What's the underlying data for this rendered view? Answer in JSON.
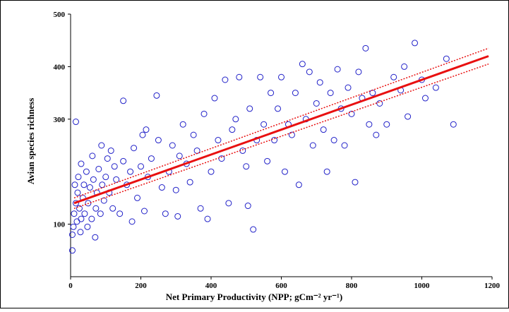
{
  "chart_data": {
    "type": "scatter",
    "x_label": "Net Primary Productivity (NPP; gCm⁻² yr⁻¹)",
    "y_label": "Avian species richness",
    "xlim": [
      0,
      1200
    ],
    "ylim": [
      0,
      500
    ],
    "xticks": [
      0,
      200,
      400,
      600,
      800,
      1000,
      1200
    ],
    "yticks": [
      100,
      300,
      400,
      500
    ],
    "color": "#2020c8",
    "x": [
      5,
      5,
      8,
      10,
      12,
      15,
      15,
      18,
      20,
      22,
      25,
      28,
      30,
      30,
      35,
      38,
      40,
      45,
      48,
      50,
      55,
      60,
      62,
      65,
      70,
      72,
      75,
      80,
      85,
      88,
      90,
      95,
      100,
      105,
      110,
      115,
      120,
      125,
      130,
      140,
      150,
      150,
      160,
      170,
      175,
      180,
      190,
      200,
      205,
      210,
      215,
      220,
      230,
      245,
      250,
      260,
      270,
      280,
      290,
      300,
      305,
      310,
      320,
      330,
      340,
      350,
      360,
      370,
      380,
      390,
      400,
      410,
      420,
      430,
      440,
      450,
      460,
      470,
      480,
      490,
      500,
      505,
      510,
      520,
      530,
      540,
      550,
      560,
      570,
      580,
      590,
      600,
      610,
      620,
      630,
      640,
      650,
      660,
      670,
      680,
      690,
      700,
      710,
      720,
      730,
      740,
      750,
      760,
      770,
      780,
      790,
      800,
      810,
      820,
      830,
      840,
      850,
      860,
      870,
      880,
      900,
      920,
      940,
      950,
      960,
      980,
      1000,
      1010,
      1040,
      1070,
      1090
    ],
    "y": [
      50,
      80,
      95,
      120,
      175,
      295,
      140,
      105,
      160,
      190,
      130,
      85,
      110,
      215,
      150,
      175,
      120,
      200,
      95,
      140,
      170,
      110,
      230,
      185,
      75,
      130,
      160,
      205,
      120,
      250,
      175,
      145,
      190,
      225,
      160,
      240,
      130,
      210,
      185,
      120,
      335,
      220,
      175,
      200,
      105,
      245,
      150,
      210,
      270,
      125,
      280,
      190,
      225,
      345,
      260,
      170,
      120,
      200,
      250,
      165,
      115,
      230,
      290,
      215,
      180,
      270,
      240,
      130,
      310,
      110,
      200,
      340,
      260,
      225,
      375,
      140,
      280,
      300,
      380,
      240,
      210,
      135,
      320,
      90,
      260,
      380,
      290,
      220,
      350,
      260,
      320,
      380,
      200,
      290,
      270,
      350,
      175,
      405,
      300,
      390,
      250,
      330,
      370,
      280,
      200,
      350,
      260,
      395,
      320,
      250,
      360,
      310,
      180,
      390,
      340,
      435,
      290,
      350,
      270,
      330,
      290,
      380,
      355,
      400,
      305,
      445,
      375,
      340,
      360,
      415,
      290
    ],
    "fit": {
      "color": "#e81010",
      "x": [
        10,
        1190
      ],
      "y": [
        140,
        420
      ]
    },
    "ci_upper": {
      "color": "#e81010",
      "x": [
        10,
        1190
      ],
      "y": [
        150,
        435
      ]
    },
    "ci_lower": {
      "color": "#e81010",
      "x": [
        10,
        1190
      ],
      "y": [
        130,
        405
      ]
    }
  }
}
